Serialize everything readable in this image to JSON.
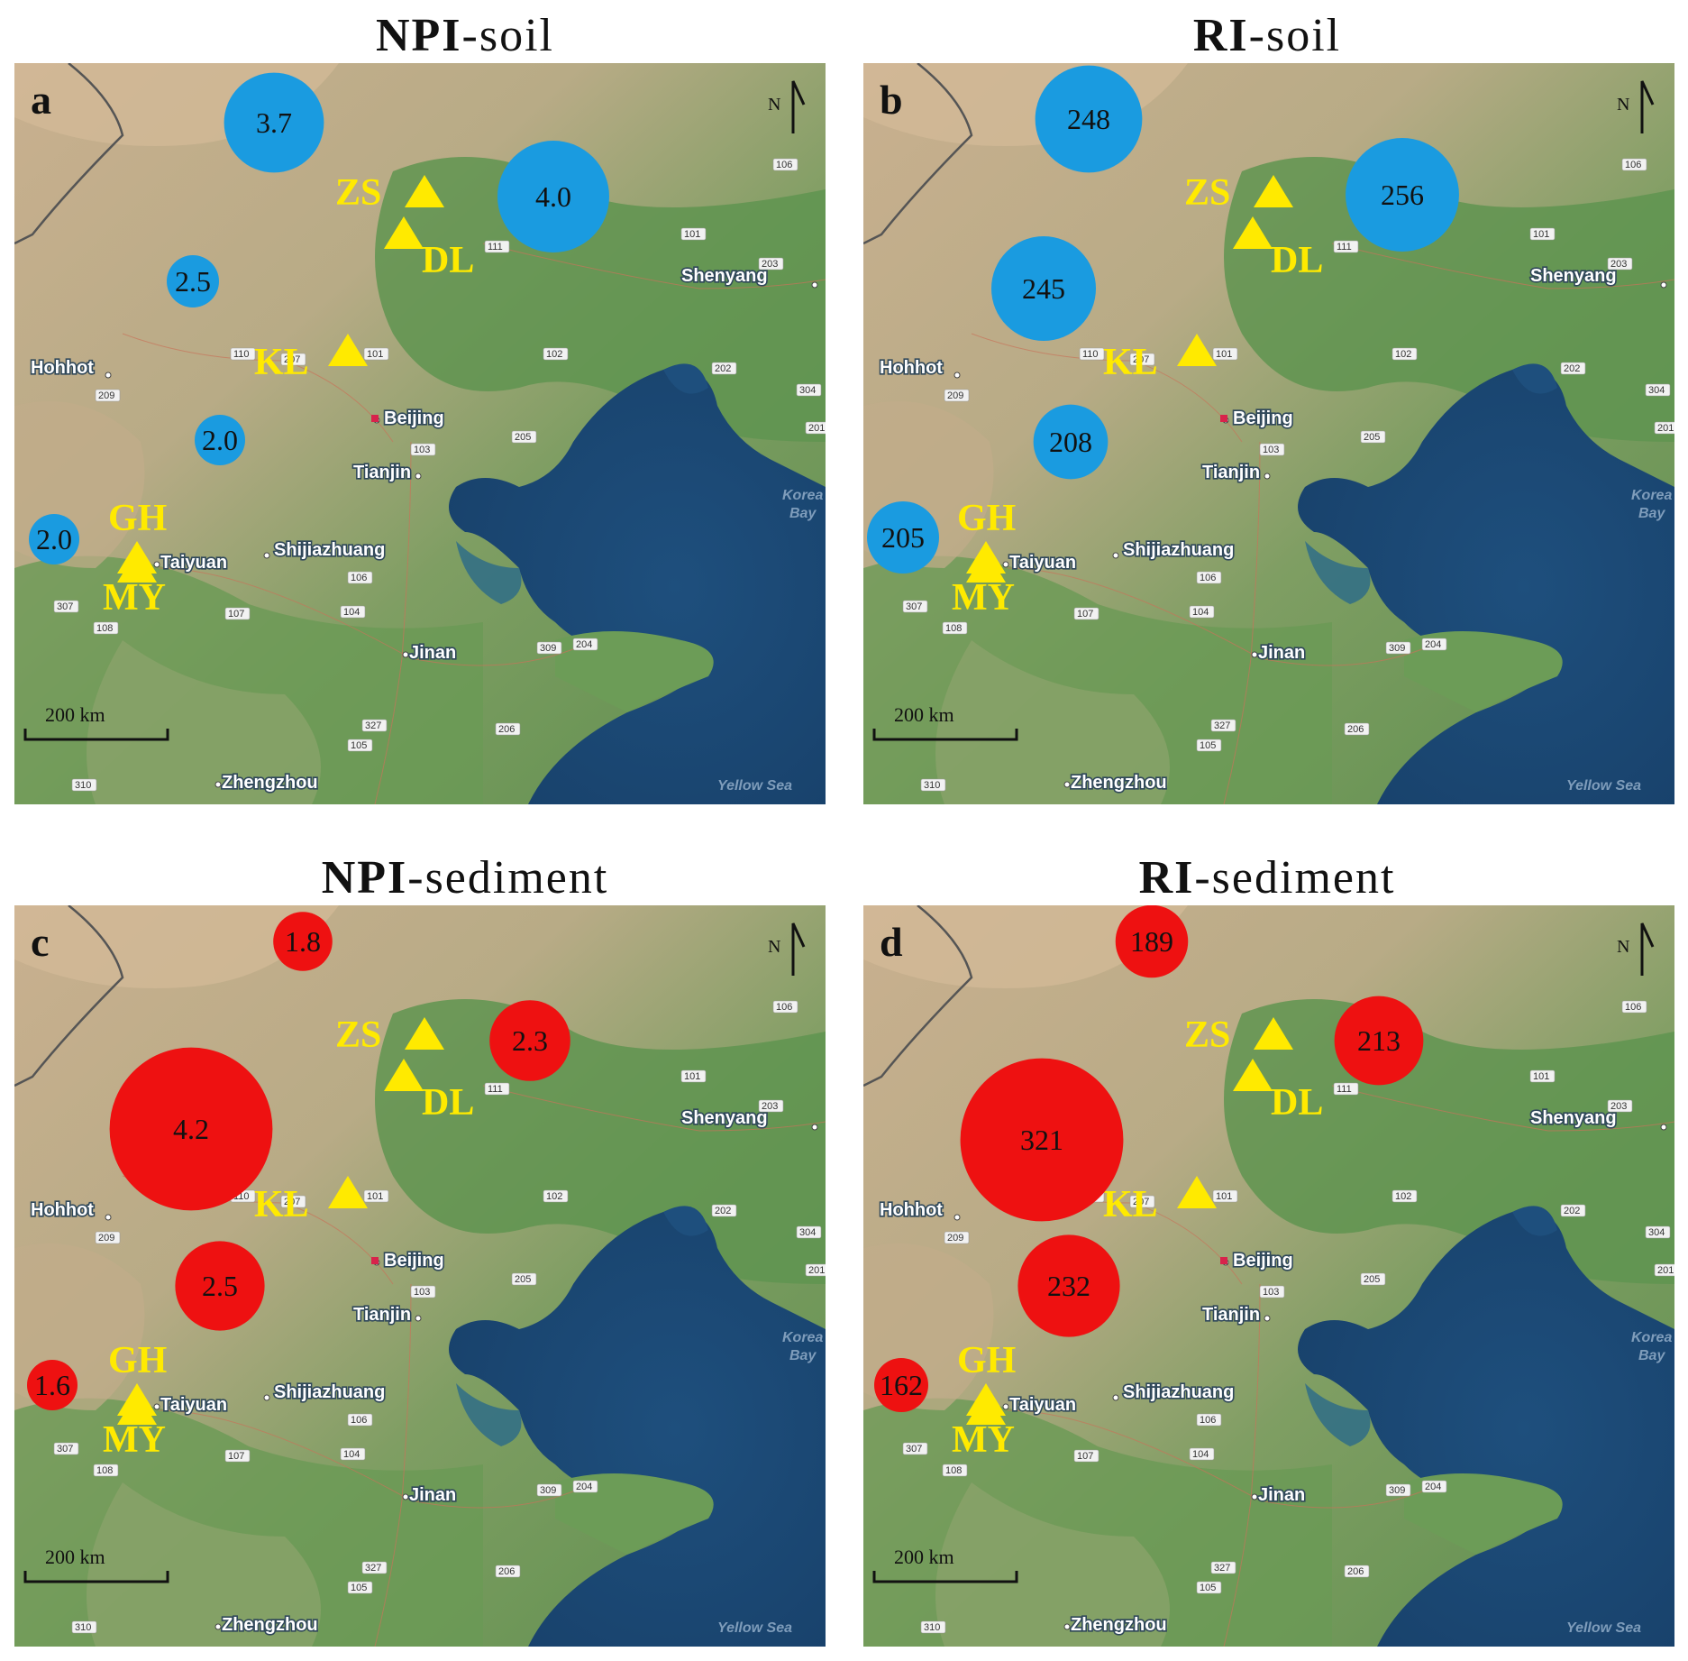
{
  "panels": [
    {
      "id": "a",
      "title_bold": "NPI",
      "title_rest": "-soil",
      "color": "#1a9be0",
      "values": {
        "ZS": "3.7",
        "DL": "4.0",
        "KL": "2.5",
        "GH": "2.0",
        "MY": "2.0"
      }
    },
    {
      "id": "b",
      "title_bold": "RI",
      "title_rest": "-soil",
      "color": "#1a9be0",
      "values": {
        "ZS": "248",
        "DL": "256",
        "KL": "245",
        "GH": "208",
        "MY": "205"
      }
    },
    {
      "id": "c",
      "title_bold": "NPI",
      "title_rest": "-sediment",
      "color": "#ee1111",
      "values": {
        "ZS": "1.8",
        "DL": "2.3",
        "KL": "4.2",
        "GH": "2.5",
        "MY": "1.6"
      }
    },
    {
      "id": "d",
      "title_bold": "RI",
      "title_rest": "-sediment",
      "color": "#ee1111",
      "values": {
        "ZS": "189",
        "DL": "213",
        "KL": "321",
        "GH": "232",
        "MY": "162"
      }
    }
  ],
  "sites": [
    "ZS",
    "DL",
    "KL",
    "GH",
    "MY"
  ],
  "cities": [
    "Shenyang",
    "Hohhot",
    "Beijing",
    "Tianjin",
    "Shijiazhuang",
    "Taiyuan",
    "Jinan",
    "Zhengzhou"
  ],
  "seas": [
    "Korea Bay",
    "Yellow Sea"
  ],
  "roads": [
    "106",
    "101",
    "203",
    "111",
    "110",
    "207",
    "101",
    "102",
    "202",
    "304",
    "209",
    "103",
    "205",
    "201",
    "106",
    "307",
    "107",
    "104",
    "108",
    "309",
    "204",
    "327",
    "206",
    "105",
    "310"
  ],
  "north_label": "N",
  "scale_label": "200 km",
  "colors": {
    "soil": "#1a9be0",
    "sediment": "#ee1111",
    "site_marker": "#ffea00"
  }
}
